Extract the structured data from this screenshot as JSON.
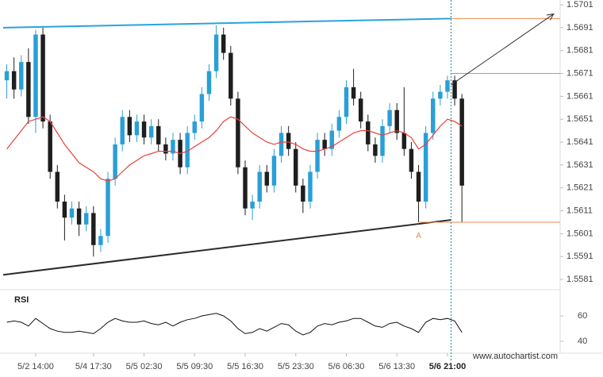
{
  "chart_data": {
    "type": "candlestick",
    "categories": [
      null,
      null,
      null,
      null,
      "5/2 14:00",
      null,
      null,
      null,
      null,
      null,
      null,
      null,
      "5/4 17:30",
      null,
      null,
      null,
      null,
      null,
      null,
      "5/5 02:30",
      null,
      null,
      null,
      null,
      null,
      null,
      "5/5 09:30",
      null,
      null,
      null,
      null,
      null,
      null,
      "5/5 16:30",
      null,
      null,
      null,
      null,
      null,
      null,
      "5/5 23:30",
      null,
      null,
      null,
      null,
      null,
      null,
      "5/6 06:30",
      null,
      null,
      null,
      null,
      null,
      null,
      "5/6 13:30",
      null,
      null,
      null,
      null,
      null,
      null,
      "5/6 21:00",
      null,
      null
    ],
    "open": [
      1.5668,
      1.5672,
      1.5664,
      1.5676,
      1.5652,
      1.5688,
      1.565,
      1.5628,
      1.5615,
      1.5608,
      1.5612,
      1.5605,
      1.561,
      1.5596,
      1.56,
      1.5625,
      1.564,
      1.5652,
      1.5644,
      1.565,
      1.5643,
      1.5648,
      1.564,
      1.5636,
      1.5642,
      1.563,
      1.5645,
      1.565,
      1.5662,
      1.5672,
      1.5688,
      1.568,
      1.566,
      1.563,
      1.5612,
      1.5615,
      1.5628,
      1.5622,
      1.5635,
      1.5645,
      1.5638,
      1.5622,
      1.5615,
      1.5628,
      1.5642,
      1.5638,
      1.5646,
      1.5652,
      1.5665,
      1.566,
      1.565,
      1.564,
      1.5635,
      1.5648,
      1.5655,
      1.5645,
      1.5638,
      1.5628,
      1.5615,
      1.5645,
      1.566,
      1.5663,
      1.5668,
      1.566
    ],
    "high": [
      1.5675,
      1.5678,
      1.5679,
      1.5682,
      1.569,
      1.5691,
      1.5653,
      1.5631,
      1.5618,
      1.5615,
      1.5615,
      1.5613,
      1.5613,
      1.5603,
      1.5628,
      1.5643,
      1.5655,
      1.5655,
      1.5653,
      1.5653,
      1.5651,
      1.5651,
      1.5643,
      1.5645,
      1.5645,
      1.5648,
      1.5653,
      1.5665,
      1.5675,
      1.5692,
      1.5691,
      1.5683,
      1.5663,
      1.5633,
      1.5618,
      1.5631,
      1.5631,
      1.5638,
      1.5648,
      1.5648,
      1.5641,
      1.5625,
      1.5631,
      1.5645,
      1.5645,
      1.5649,
      1.5655,
      1.5668,
      1.5673,
      1.5663,
      1.5653,
      1.5643,
      1.5651,
      1.5658,
      1.5658,
      1.5665,
      1.5641,
      1.5631,
      1.5648,
      1.5663,
      1.5666,
      1.567,
      1.567,
      1.5662
    ],
    "low": [
      1.566,
      1.566,
      1.5661,
      1.5649,
      1.5645,
      1.5647,
      1.5625,
      1.5612,
      1.5598,
      1.5605,
      1.56,
      1.5602,
      1.5591,
      1.5593,
      1.5597,
      1.5622,
      1.5637,
      1.5641,
      1.5641,
      1.564,
      1.564,
      1.5637,
      1.5633,
      1.5633,
      1.5627,
      1.5627,
      1.5642,
      1.5647,
      1.5659,
      1.5669,
      1.5677,
      1.5657,
      1.5627,
      1.5609,
      1.5607,
      1.5612,
      1.5619,
      1.5619,
      1.5632,
      1.5635,
      1.5619,
      1.561,
      1.5612,
      1.5625,
      1.5635,
      1.5635,
      1.5643,
      1.5649,
      1.5657,
      1.5647,
      1.5637,
      1.5632,
      1.5632,
      1.5645,
      1.5642,
      1.5635,
      1.5625,
      1.5606,
      1.5612,
      1.5642,
      1.5657,
      1.566,
      1.5657,
      1.5606
    ],
    "close": [
      1.5672,
      1.5664,
      1.5676,
      1.5652,
      1.5688,
      1.565,
      1.5628,
      1.5615,
      1.5608,
      1.5612,
      1.5605,
      1.561,
      1.5596,
      1.56,
      1.5625,
      1.564,
      1.5652,
      1.5644,
      1.565,
      1.5643,
      1.5648,
      1.564,
      1.5636,
      1.5642,
      1.563,
      1.5645,
      1.565,
      1.5662,
      1.5672,
      1.5688,
      1.568,
      1.566,
      1.563,
      1.5612,
      1.5615,
      1.5628,
      1.5622,
      1.5635,
      1.5645,
      1.5638,
      1.5622,
      1.5615,
      1.5628,
      1.5642,
      1.5638,
      1.5646,
      1.5652,
      1.5665,
      1.566,
      1.565,
      1.564,
      1.5635,
      1.5648,
      1.5655,
      1.5645,
      1.5638,
      1.5628,
      1.5615,
      1.5645,
      1.566,
      1.5663,
      1.5668,
      1.566,
      1.5622
    ],
    "up_color": "#2a9fd6",
    "down_color": "#1e1e1e",
    "moving_average": {
      "color": "#e8413a",
      "values": [
        1.5638,
        1.5642,
        1.5646,
        1.565,
        1.5651,
        1.5652,
        1.565,
        1.5645,
        1.564,
        1.5636,
        1.5632,
        1.563,
        1.5628,
        1.5625,
        1.5624,
        1.5625,
        1.5628,
        1.5631,
        1.5633,
        1.5635,
        1.5636,
        1.5637,
        1.5637,
        1.5637,
        1.5636,
        1.5637,
        1.5639,
        1.5641,
        1.5643,
        1.5646,
        1.565,
        1.5652,
        1.5651,
        1.5648,
        1.5645,
        1.5643,
        1.5641,
        1.564,
        1.5641,
        1.5641,
        1.564,
        1.5638,
        1.5637,
        1.5637,
        1.5638,
        1.5639,
        1.5641,
        1.5643,
        1.5645,
        1.5646,
        1.5646,
        1.5645,
        1.5644,
        1.5645,
        1.5646,
        1.5645,
        1.5643,
        1.5638,
        1.564,
        1.5644,
        1.5648,
        1.5651,
        1.565,
        1.5648
      ]
    },
    "xlim": [
      -0.5,
      76.6
    ],
    "ylim": [
      1.55765,
      1.57031
    ],
    "yticks": [
      1.5701,
      1.5691,
      1.5681,
      1.5671,
      1.5661,
      1.5651,
      1.5641,
      1.5631,
      1.5621,
      1.5611,
      1.5601,
      1.5591,
      1.5581
    ],
    "trendlines": [
      {
        "color": "#29a3dd",
        "start": [
          -0.5,
          1.5691
        ],
        "end": [
          61.5,
          1.5695
        ]
      },
      {
        "color": "#2b2b2b",
        "start": [
          -0.5,
          1.5583
        ],
        "end": [
          61.5,
          1.5607
        ]
      }
    ],
    "levels": {
      "color": "#f08a4b",
      "lines": [
        {
          "value": 1.5695,
          "from": 61.5
        },
        {
          "value": 1.5671,
          "from": 61.5
        },
        {
          "value": 1.5606,
          "from": 57
        }
      ]
    },
    "arrow": {
      "color": "#333333",
      "start": [
        61.5,
        1.5666
      ],
      "end": [
        75.7,
        1.5697
      ]
    },
    "point_label": {
      "text": "A",
      "x": 57,
      "y": 1.5602,
      "color": "#f08a4b"
    },
    "vline": {
      "x": 61.5,
      "color": "#1b8a8a"
    },
    "rsi": {
      "label": "RSI",
      "color": "#111111",
      "ylim": [
        30.6,
        76.25
      ],
      "yticks": [
        40,
        60
      ],
      "values": [
        55,
        56,
        55,
        52,
        58,
        54,
        50,
        48,
        47,
        47,
        48,
        47,
        46,
        50,
        55,
        58,
        56,
        55,
        55,
        56,
        54,
        53,
        55,
        52,
        55,
        57,
        58,
        60,
        61,
        62,
        60,
        56,
        50,
        46,
        47,
        50,
        48,
        51,
        54,
        53,
        48,
        45,
        47,
        52,
        54,
        53,
        55,
        56,
        58,
        58,
        55,
        52,
        51,
        54,
        55,
        52,
        50,
        47,
        55,
        58,
        57,
        58,
        56,
        47
      ]
    },
    "footer": "www.autochartist.com"
  }
}
